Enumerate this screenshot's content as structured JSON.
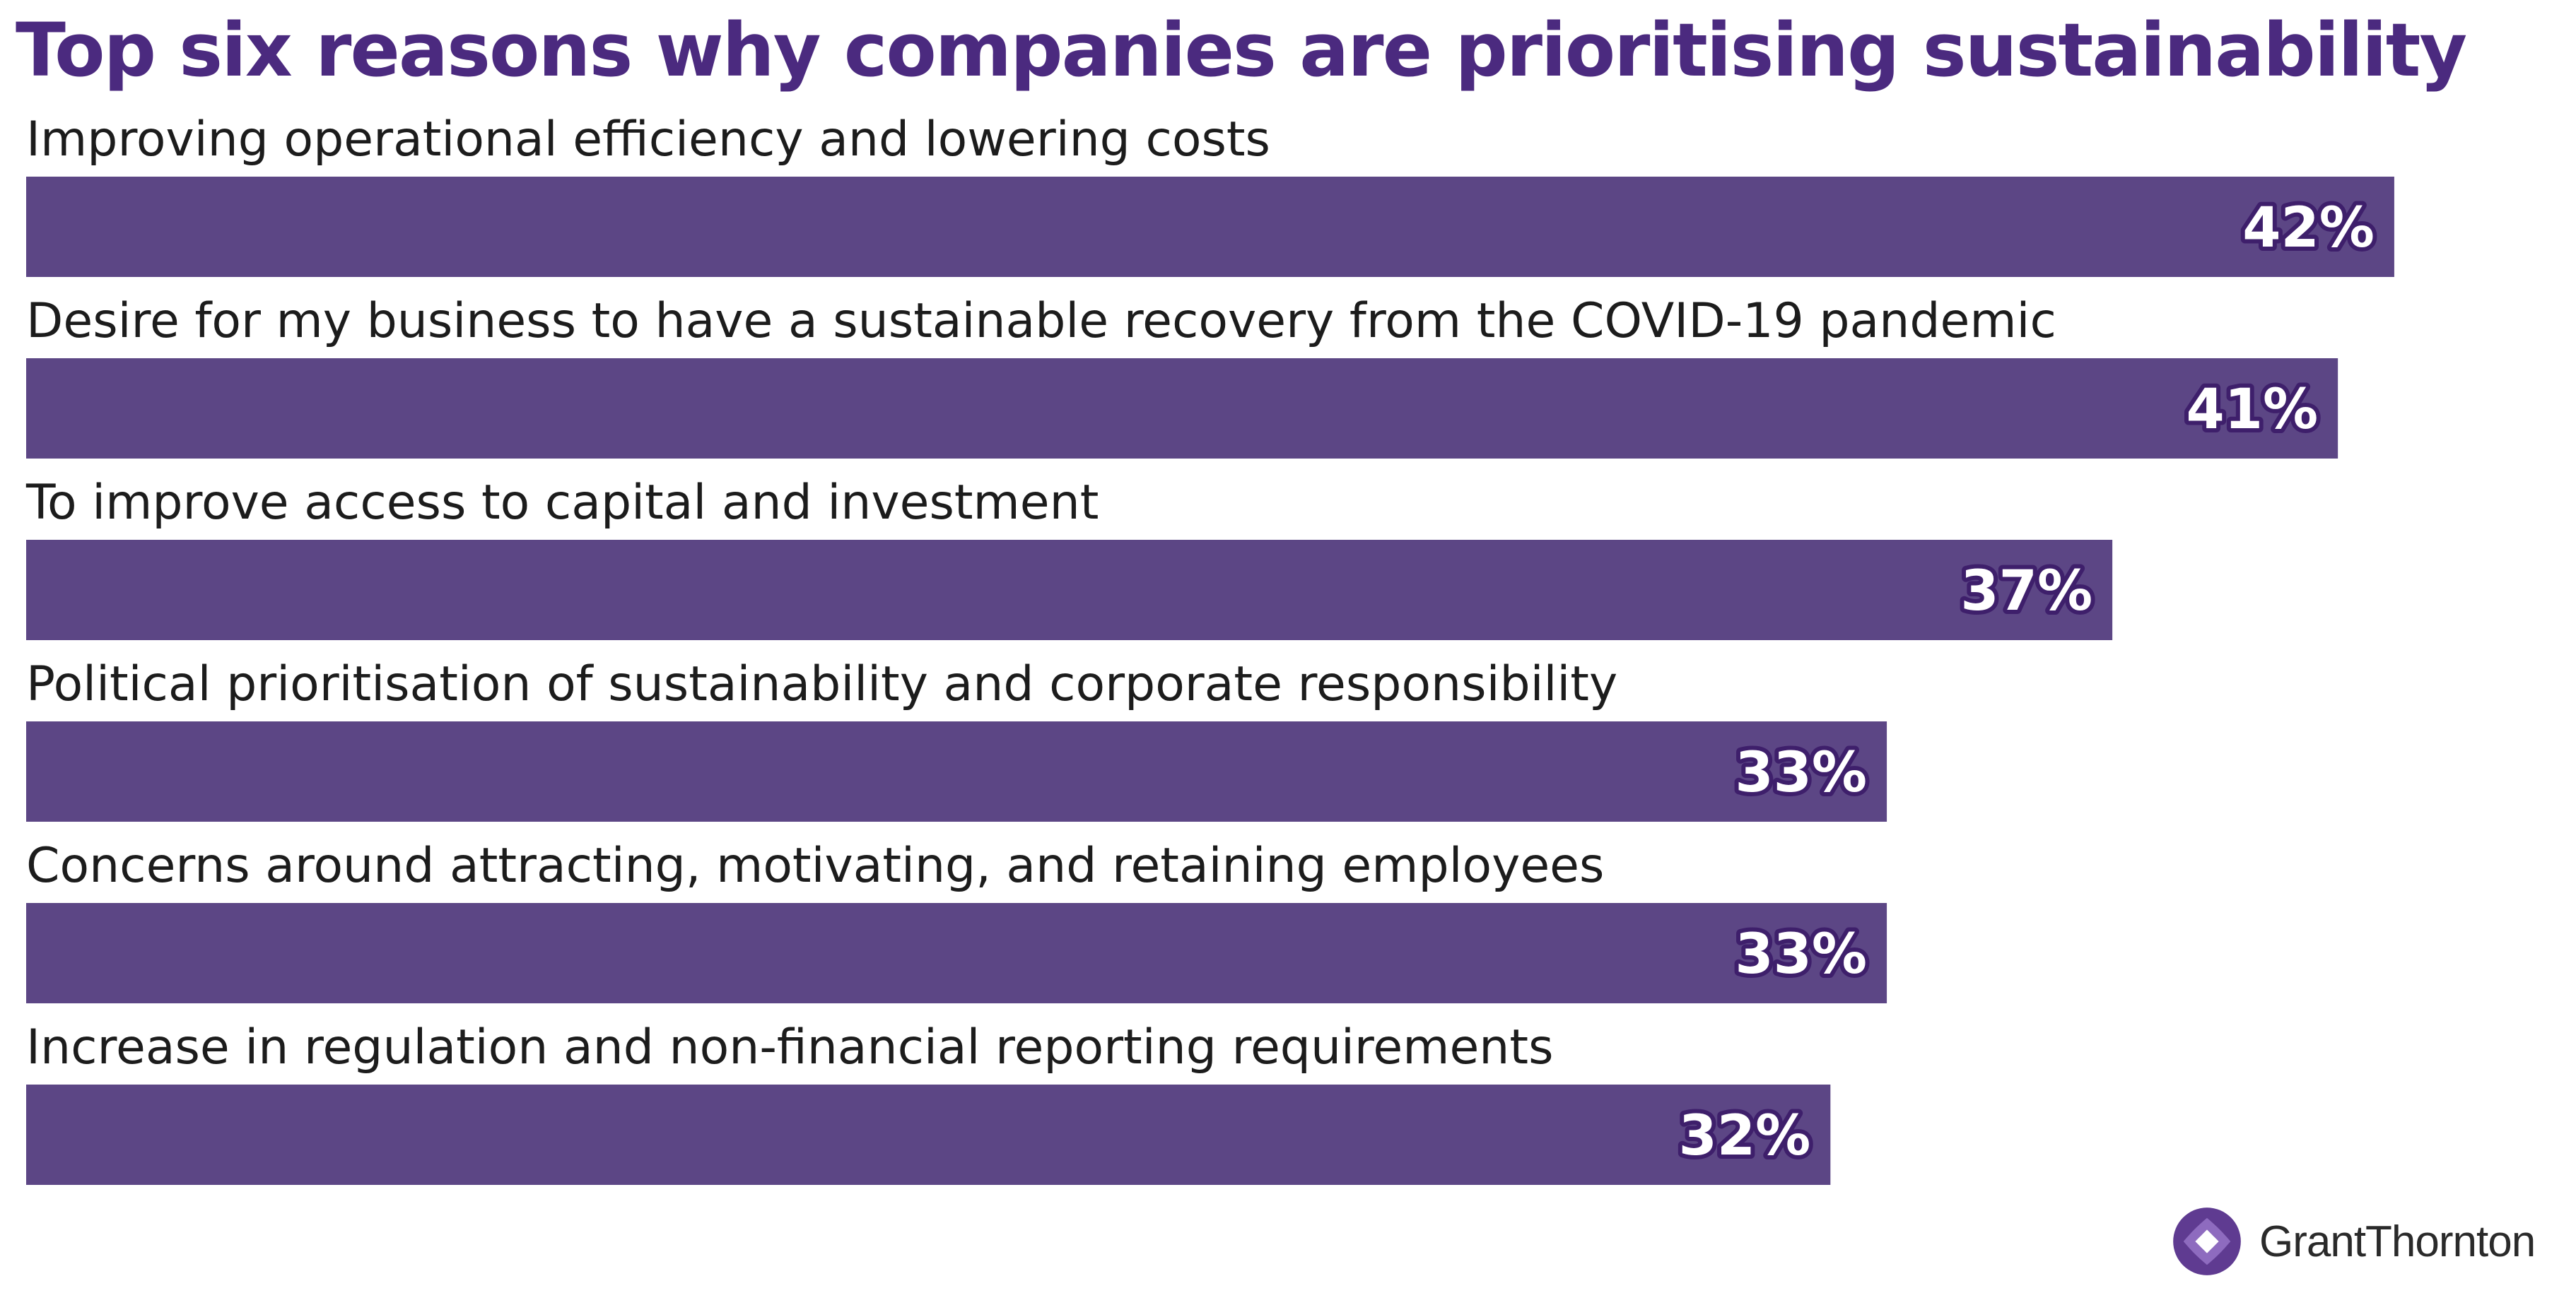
{
  "title": "Top six reasons why companies are prioritising sustainability",
  "colors": {
    "bar": "#5c4685",
    "title": "#4b2a7f",
    "label_outline": "#3e1f6b"
  },
  "chart_data": {
    "type": "bar",
    "orientation": "horizontal",
    "categories": [
      "Improving operational efficiency and lowering costs",
      "Desire for my business to have a sustainable recovery from the COVID-19 pandemic",
      "To improve access to capital and investment",
      "Political prioritisation of sustainability and corporate responsibility",
      "Concerns around attracting, motivating, and retaining employees",
      "Increase in regulation and non-financial reporting requirements"
    ],
    "values": [
      42,
      41,
      37,
      33,
      33,
      32
    ],
    "value_labels": [
      "42%",
      "41%",
      "37%",
      "33%",
      "33%",
      "32%"
    ],
    "unit": "%",
    "grid": false,
    "legend": "none"
  },
  "brand": {
    "name": "GrantThornton",
    "logo_icon": "grant-thornton-logo-icon"
  }
}
